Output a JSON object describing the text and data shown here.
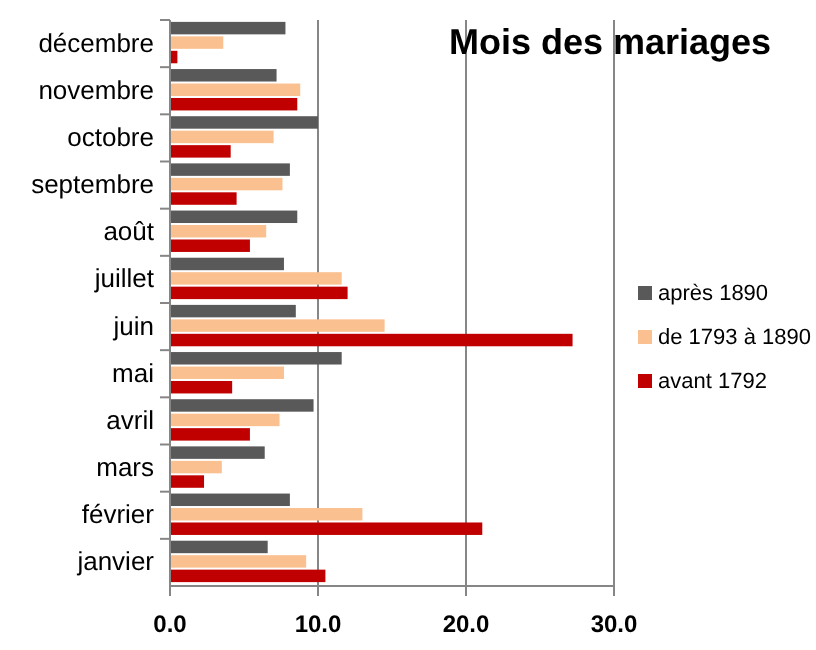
{
  "chart_data": {
    "type": "bar",
    "orientation": "horizontal",
    "title": "Mois des mariages",
    "categories": [
      "décembre",
      "novembre",
      "octobre",
      "septembre",
      "août",
      "juillet",
      "juin",
      "mai",
      "avril",
      "mars",
      "février",
      "janvier"
    ],
    "series": [
      {
        "name": "après 1890",
        "color": "#595959",
        "values": [
          7.8,
          7.2,
          10.0,
          8.1,
          8.6,
          7.7,
          8.5,
          11.6,
          9.7,
          6.4,
          8.1,
          6.6
        ]
      },
      {
        "name": "de 1793 à 1890",
        "color": "#fac090",
        "values": [
          3.6,
          8.8,
          7.0,
          7.6,
          6.5,
          11.6,
          14.5,
          7.7,
          7.4,
          3.5,
          13.0,
          9.2
        ]
      },
      {
        "name": "avant 1792",
        "color": "#c00000",
        "values": [
          0.5,
          8.6,
          4.1,
          4.5,
          5.4,
          12.0,
          27.2,
          4.2,
          5.4,
          2.3,
          21.1,
          10.5
        ]
      }
    ],
    "xlim": [
      0,
      30
    ],
    "xticks": [
      {
        "value": 0,
        "label": "0.0"
      },
      {
        "value": 10,
        "label": "10.0"
      },
      {
        "value": 20,
        "label": "20.0"
      },
      {
        "value": 30,
        "label": "30.0"
      }
    ],
    "grid": "x",
    "legend": "right"
  }
}
